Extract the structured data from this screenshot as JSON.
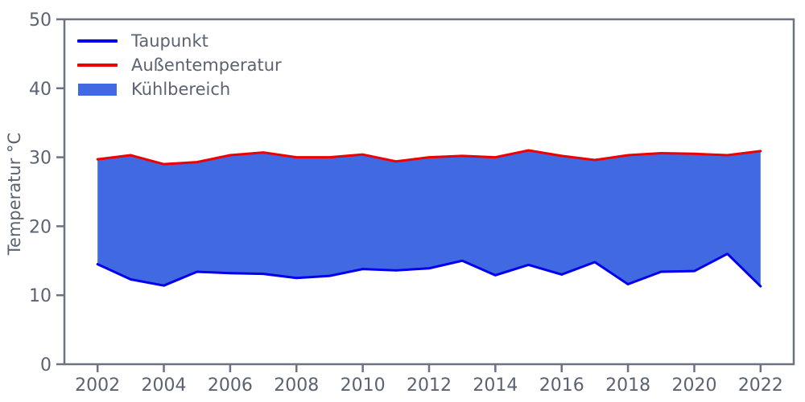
{
  "figure": {
    "background": "#ffffff",
    "text_color": "#5b6270",
    "spine_color": "#6b7280"
  },
  "chart_data": {
    "type": "area",
    "title": "",
    "xlabel": "",
    "ylabel": "Temperatur °C",
    "xlim": [
      2001,
      2023
    ],
    "ylim": [
      0,
      50
    ],
    "xticks": [
      2002,
      2004,
      2006,
      2008,
      2010,
      2012,
      2014,
      2016,
      2018,
      2020,
      2022
    ],
    "yticks": [
      0,
      10,
      20,
      30,
      40,
      50
    ],
    "grid": false,
    "legend_position": "upper-left",
    "x": [
      2002,
      2003,
      2004,
      2005,
      2006,
      2007,
      2008,
      2009,
      2010,
      2011,
      2012,
      2013,
      2014,
      2015,
      2016,
      2017,
      2018,
      2019,
      2020,
      2021,
      2022
    ],
    "series": [
      {
        "name": "Taupunkt",
        "kind": "line",
        "color": "#0000ee",
        "values": [
          14.5,
          12.3,
          11.4,
          13.4,
          13.2,
          13.1,
          12.5,
          12.8,
          13.8,
          13.6,
          13.9,
          15.0,
          12.9,
          14.4,
          13.0,
          14.8,
          11.6,
          13.4,
          13.5,
          16.0,
          11.3
        ]
      },
      {
        "name": "Außentemperatur",
        "kind": "line",
        "color": "#ee0000",
        "values": [
          29.7,
          30.3,
          29.0,
          29.3,
          30.3,
          30.7,
          30.0,
          30.0,
          30.4,
          29.4,
          30.0,
          30.2,
          30.0,
          31.0,
          30.2,
          29.6,
          30.3,
          30.6,
          30.5,
          30.3,
          30.9
        ]
      },
      {
        "name": "Kühlbereich",
        "kind": "fill-between",
        "color": "#4169e1",
        "between": [
          "Taupunkt",
          "Außentemperatur"
        ]
      }
    ]
  },
  "legend": {
    "items": [
      {
        "label": "Taupunkt",
        "swatch": "line",
        "color": "#0000ee"
      },
      {
        "label": "Außentemperatur",
        "swatch": "line",
        "color": "#ee0000"
      },
      {
        "label": "Kühlbereich",
        "swatch": "patch",
        "color": "#4169e1"
      }
    ]
  }
}
